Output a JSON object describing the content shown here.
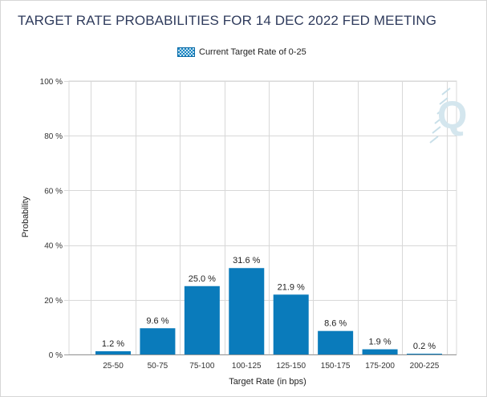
{
  "chart_data": {
    "type": "bar",
    "title": "TARGET RATE PROBABILITIES FOR 14 DEC 2022 FED MEETING",
    "legend": {
      "label": "Current Target Rate of 0-25",
      "placement": "top-center"
    },
    "categories": [
      "25-50",
      "50-75",
      "75-100",
      "100-125",
      "125-150",
      "150-175",
      "175-200",
      "200-225"
    ],
    "series": [
      {
        "name": "Current Target Rate of 0-25",
        "values": [
          1.2,
          9.6,
          25.0,
          31.6,
          21.9,
          8.6,
          1.9,
          0.2
        ]
      }
    ],
    "data_labels": [
      "1.2 %",
      "9.6 %",
      "25.0 %",
      "31.6 %",
      "21.9 %",
      "8.6 %",
      "1.9 %",
      "0.2 %"
    ],
    "xlabel": "Target Rate (in bps)",
    "ylabel": "Probability",
    "ylim": [
      0,
      100
    ],
    "yticks": [
      "0 %",
      "20 %",
      "40 %",
      "60 %",
      "80 %",
      "100 %"
    ],
    "grid": true,
    "colors": {
      "bar": "#0a7bbb",
      "grid": "#d8d8d8",
      "title": "#2f3b5c"
    },
    "watermark": "Q"
  }
}
